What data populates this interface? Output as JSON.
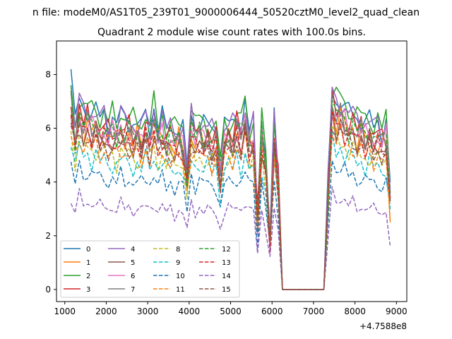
{
  "chart_data": {
    "type": "line",
    "suptitle": "n file: modeM0/AS1T05_239T01_9000006444_50520cztM0_level2_quad_clean",
    "title": "Quadrant 2 module wise count rates with 100.0s bins.",
    "xlabel": "",
    "ylabel": "",
    "x_offset_text": "+4.7588e8",
    "xlim": [
      800,
      9250
    ],
    "ylim": [
      -0.45,
      9.25
    ],
    "xticks": [
      1000,
      2000,
      3000,
      4000,
      5000,
      6000,
      7000,
      8000,
      9000
    ],
    "yticks": [
      0,
      2,
      4,
      6,
      8
    ],
    "grid": false,
    "legend": {
      "placement": "lower-left",
      "ncol": 4
    },
    "profile": {
      "x": [
        1150,
        1250,
        1350,
        1450,
        1550,
        1650,
        1750,
        1850,
        1950,
        2050,
        2150,
        2250,
        2350,
        2450,
        2550,
        2650,
        2750,
        2850,
        2950,
        3050,
        3150,
        3250,
        3350,
        3450,
        3550,
        3650,
        3750,
        3850,
        3950,
        4050,
        4150,
        4250,
        4350,
        4450,
        4550,
        4650,
        4750,
        4850,
        4950,
        5050,
        5150,
        5250,
        5350,
        5450,
        5550,
        5650,
        5750,
        5850,
        5950,
        6050,
        6150,
        6250,
        6350,
        7250,
        7350,
        7450,
        7550,
        7650,
        7750,
        7850,
        7950,
        8050,
        8150,
        8250,
        8350,
        8450,
        8550,
        8650,
        8750,
        8850
      ],
      "y": [
        1.0,
        0.86,
        1.02,
        0.93,
        0.97,
        0.92,
        0.95,
        0.9,
        0.92,
        0.88,
        0.9,
        0.87,
        0.93,
        0.89,
        0.91,
        0.86,
        0.89,
        0.85,
        0.92,
        0.87,
        0.95,
        0.86,
        0.9,
        0.84,
        0.88,
        0.83,
        0.87,
        0.82,
        0.65,
        0.93,
        0.86,
        0.9,
        0.85,
        0.88,
        0.83,
        0.86,
        0.66,
        0.85,
        0.89,
        0.85,
        0.93,
        0.87,
        0.97,
        0.84,
        0.86,
        0.4,
        0.88,
        0.69,
        0.3,
        0.88,
        0.62,
        0.0,
        0.0,
        0.0,
        0.55,
        1.07,
        0.98,
        1.01,
        0.96,
        0.92,
        0.95,
        0.89,
        0.92,
        0.87,
        0.9,
        0.86,
        0.88,
        0.84,
        0.87,
        0.45
      ]
    },
    "series": [
      {
        "name": "0",
        "color": "#1f77b4",
        "dashed": false,
        "level": 7.05,
        "start": 8.2,
        "end": 4.0
      },
      {
        "name": "1",
        "color": "#ff7f0e",
        "dashed": false,
        "level": 6.35,
        "start": 6.5,
        "end": 2.5
      },
      {
        "name": "2",
        "color": "#2ca02c",
        "dashed": false,
        "level": 7.15,
        "start": 7.6,
        "end": 3.6
      },
      {
        "name": "3",
        "color": "#d62728",
        "dashed": false,
        "level": 6.6,
        "start": 6.8,
        "end": 3.4
      },
      {
        "name": "4",
        "color": "#9467bd",
        "dashed": false,
        "level": 7.0,
        "start": 7.3,
        "end": 3.7
      },
      {
        "name": "5",
        "color": "#8c564b",
        "dashed": false,
        "level": 6.15,
        "start": 6.2,
        "end": 3.3
      },
      {
        "name": "6",
        "color": "#e377c2",
        "dashed": false,
        "level": 6.45,
        "start": 6.4,
        "end": 3.4
      },
      {
        "name": "7",
        "color": "#7f7f7f",
        "dashed": false,
        "level": 6.35,
        "start": 7.4,
        "end": 3.3
      },
      {
        "name": "8",
        "color": "#bcbd22",
        "dashed": true,
        "level": 5.55,
        "start": 5.9,
        "end": 3.0
      },
      {
        "name": "9",
        "color": "#17becf",
        "dashed": true,
        "level": 5.25,
        "start": 5.3,
        "end": 3.0
      },
      {
        "name": "10",
        "color": "#1f77b4",
        "dashed": true,
        "level": 4.55,
        "start": 4.75,
        "end": 3.3
      },
      {
        "name": "11",
        "color": "#ff7f0e",
        "dashed": true,
        "level": 5.65,
        "start": 5.7,
        "end": 2.5
      },
      {
        "name": "12",
        "color": "#2ca02c",
        "dashed": true,
        "level": 6.5,
        "start": 7.6,
        "end": 3.5
      },
      {
        "name": "13",
        "color": "#d62728",
        "dashed": true,
        "level": 6.1,
        "start": 6.5,
        "end": 3.4
      },
      {
        "name": "14",
        "color": "#9467bd",
        "dashed": true,
        "level": 3.4,
        "start": 3.2,
        "end": 1.6
      },
      {
        "name": "15",
        "color": "#8c564b",
        "dashed": true,
        "level": 5.9,
        "start": 6.1,
        "end": 3.2
      }
    ]
  }
}
